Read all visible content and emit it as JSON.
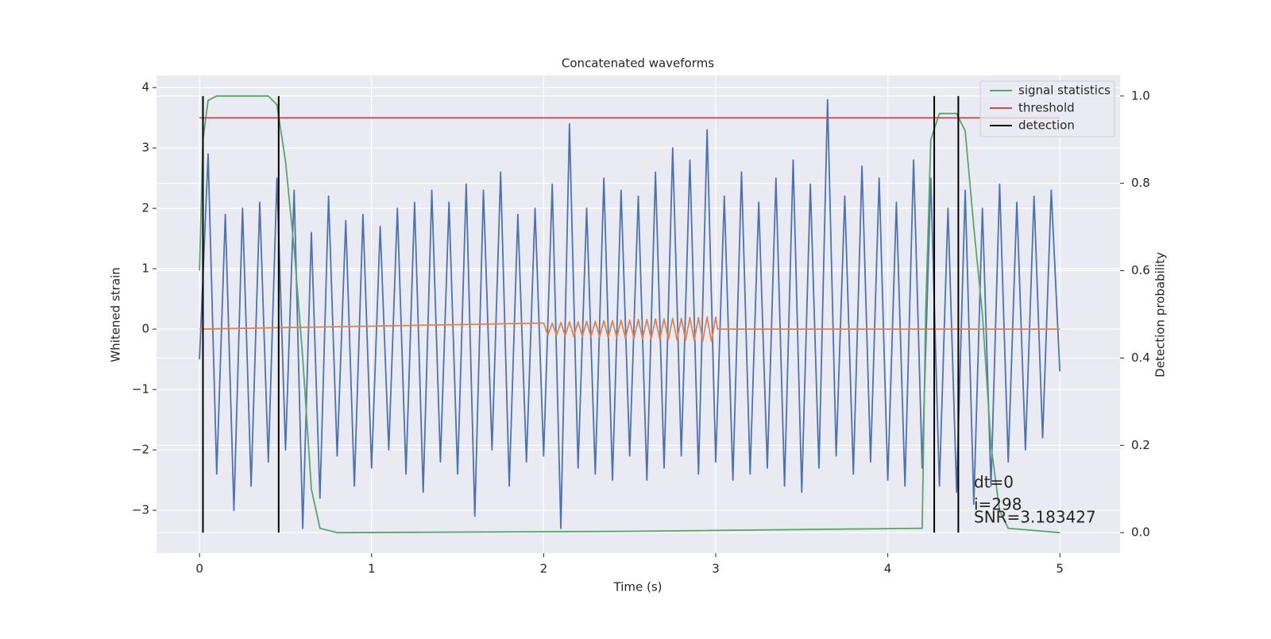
{
  "chart_data": {
    "type": "line",
    "title": "Concatenated waveforms",
    "x_label": "Time (s)",
    "y_label": "Whitened strain",
    "y2_label": "Detection probability",
    "xlim": [
      -0.25,
      5.35
    ],
    "ylim": [
      -3.71,
      4.2
    ],
    "y2lim": [
      -0.047,
      1.047
    ],
    "xticks": [
      0,
      1,
      2,
      3,
      4,
      5
    ],
    "yticks": [
      {
        "value": -3,
        "label": "−3"
      },
      {
        "value": -2,
        "label": "−2"
      },
      {
        "value": -1,
        "label": "−1"
      },
      0,
      1,
      2,
      3,
      4
    ],
    "y2ticks": [
      {
        "value": 0,
        "label": "0.0"
      },
      0.2,
      0.4,
      0.6,
      0.8,
      {
        "value": 1,
        "label": "1.0"
      }
    ],
    "grid": true,
    "legend": "upper right",
    "annotations": [
      "dt=0",
      "i=298",
      "SNR=3.183427"
    ],
    "series": [
      {
        "color": "#4c72b0",
        "x": [
          0,
          0.05,
          0.1,
          0.15,
          0.2,
          0.25,
          0.3,
          0.35,
          0.4,
          0.45,
          0.5,
          0.55,
          0.6,
          0.65,
          0.7,
          0.75,
          0.8,
          0.85,
          0.9,
          0.95,
          1.0,
          1.05,
          1.1,
          1.15,
          1.2,
          1.25,
          1.3,
          1.35,
          1.4,
          1.45,
          1.5,
          1.55,
          1.6,
          1.65,
          1.7,
          1.75,
          1.8,
          1.85,
          1.9,
          1.95,
          2.0,
          2.05,
          2.1,
          2.15,
          2.2,
          2.25,
          2.3,
          2.35,
          2.4,
          2.45,
          2.5,
          2.55,
          2.6,
          2.65,
          2.7,
          2.75,
          2.8,
          2.85,
          2.9,
          2.95,
          3.0,
          3.05,
          3.1,
          3.15,
          3.2,
          3.25,
          3.3,
          3.35,
          3.4,
          3.45,
          3.5,
          3.55,
          3.6,
          3.65,
          3.7,
          3.75,
          3.8,
          3.85,
          3.9,
          3.95,
          4.0,
          4.05,
          4.1,
          4.15,
          4.2,
          4.25,
          4.3,
          4.35,
          4.4,
          4.45,
          4.5,
          4.55,
          4.6,
          4.65,
          4.7,
          4.75,
          4.8,
          4.85,
          4.9,
          4.95,
          5.0
        ],
        "values": [
          -0.5,
          2.9,
          -2.4,
          1.9,
          -3.0,
          2.0,
          -2.6,
          2.1,
          -2.2,
          2.5,
          -2.0,
          2.3,
          -3.3,
          1.6,
          -2.8,
          2.2,
          -2.1,
          1.8,
          -2.6,
          1.9,
          -2.3,
          1.7,
          -2.0,
          2.0,
          -2.4,
          2.1,
          -2.7,
          2.3,
          -2.2,
          2.1,
          -2.4,
          2.4,
          -3.1,
          2.3,
          -2.0,
          2.6,
          -2.6,
          1.9,
          -2.2,
          2.0,
          -2.1,
          2.4,
          -3.3,
          3.4,
          -2.3,
          2.0,
          -2.4,
          2.5,
          -2.5,
          2.3,
          -2.1,
          2.2,
          -2.5,
          2.6,
          -2.3,
          3.0,
          -2.1,
          2.8,
          -2.4,
          3.3,
          -2.2,
          2.2,
          -2.5,
          2.6,
          -2.4,
          2.1,
          -2.3,
          2.5,
          -2.6,
          2.8,
          -2.7,
          2.4,
          -2.3,
          3.8,
          -2.1,
          2.2,
          -2.4,
          2.7,
          -2.2,
          2.5,
          -2.5,
          2.1,
          -2.6,
          2.8,
          -2.3,
          2.5,
          -2.6,
          2.0,
          -2.7,
          2.3,
          -2.9,
          2.0,
          -2.6,
          2.4,
          -2.2,
          2.1,
          -2.0,
          2.2,
          -1.8,
          2.3,
          -0.7
        ]
      },
      {
        "color": "#dd8452",
        "x": [
          0,
          2.0,
          2.025,
          2.05,
          2.075,
          2.1,
          2.125,
          2.15,
          2.175,
          2.2,
          2.225,
          2.25,
          2.275,
          2.3,
          2.325,
          2.35,
          2.375,
          2.4,
          2.425,
          2.45,
          2.475,
          2.5,
          2.525,
          2.55,
          2.575,
          2.6,
          2.625,
          2.65,
          2.675,
          2.7,
          2.725,
          2.75,
          2.775,
          2.8,
          2.825,
          2.85,
          2.875,
          2.9,
          2.925,
          2.95,
          2.975,
          3.0,
          3.01,
          5.0
        ],
        "values": [
          0,
          0.1,
          -0.1,
          0.1,
          -0.11,
          0.11,
          -0.11,
          0.12,
          -0.12,
          0.12,
          -0.12,
          0.13,
          -0.13,
          0.13,
          -0.13,
          0.14,
          -0.14,
          0.14,
          -0.14,
          0.15,
          -0.15,
          0.15,
          -0.15,
          0.16,
          -0.16,
          0.16,
          -0.16,
          0.17,
          -0.17,
          0.17,
          -0.17,
          0.18,
          -0.18,
          0.18,
          -0.18,
          0.19,
          -0.19,
          0.19,
          -0.19,
          0.2,
          -0.2,
          0.2,
          0,
          0
        ]
      },
      {
        "name": "signal statistics",
        "color": "#55a868",
        "axis": "y2",
        "x": [
          0,
          0.02,
          0.05,
          0.1,
          0.4,
          0.45,
          0.5,
          0.55,
          0.6,
          0.65,
          0.7,
          0.8,
          2.5,
          4.2,
          4.22,
          4.25,
          4.3,
          4.4,
          4.45,
          4.5,
          4.55,
          4.6,
          4.65,
          4.7,
          5.0
        ],
        "values": [
          0.6,
          0.9,
          0.99,
          1.0,
          1.0,
          0.98,
          0.85,
          0.65,
          0.4,
          0.1,
          0.01,
          0.0,
          0.003,
          0.01,
          0.5,
          0.9,
          0.96,
          0.96,
          0.92,
          0.7,
          0.5,
          0.2,
          0.05,
          0.01,
          0.0
        ]
      },
      {
        "name": "threshold",
        "color": "#c44e52",
        "axis": "y2",
        "x": [
          0,
          5
        ],
        "values": [
          0.95,
          0.95
        ]
      },
      {
        "name": "detection",
        "color": "#000000",
        "axis": "y2",
        "type": "vline",
        "x": [
          0.02,
          0.46,
          4.27,
          4.41
        ],
        "span": [
          0,
          1
        ]
      }
    ]
  }
}
